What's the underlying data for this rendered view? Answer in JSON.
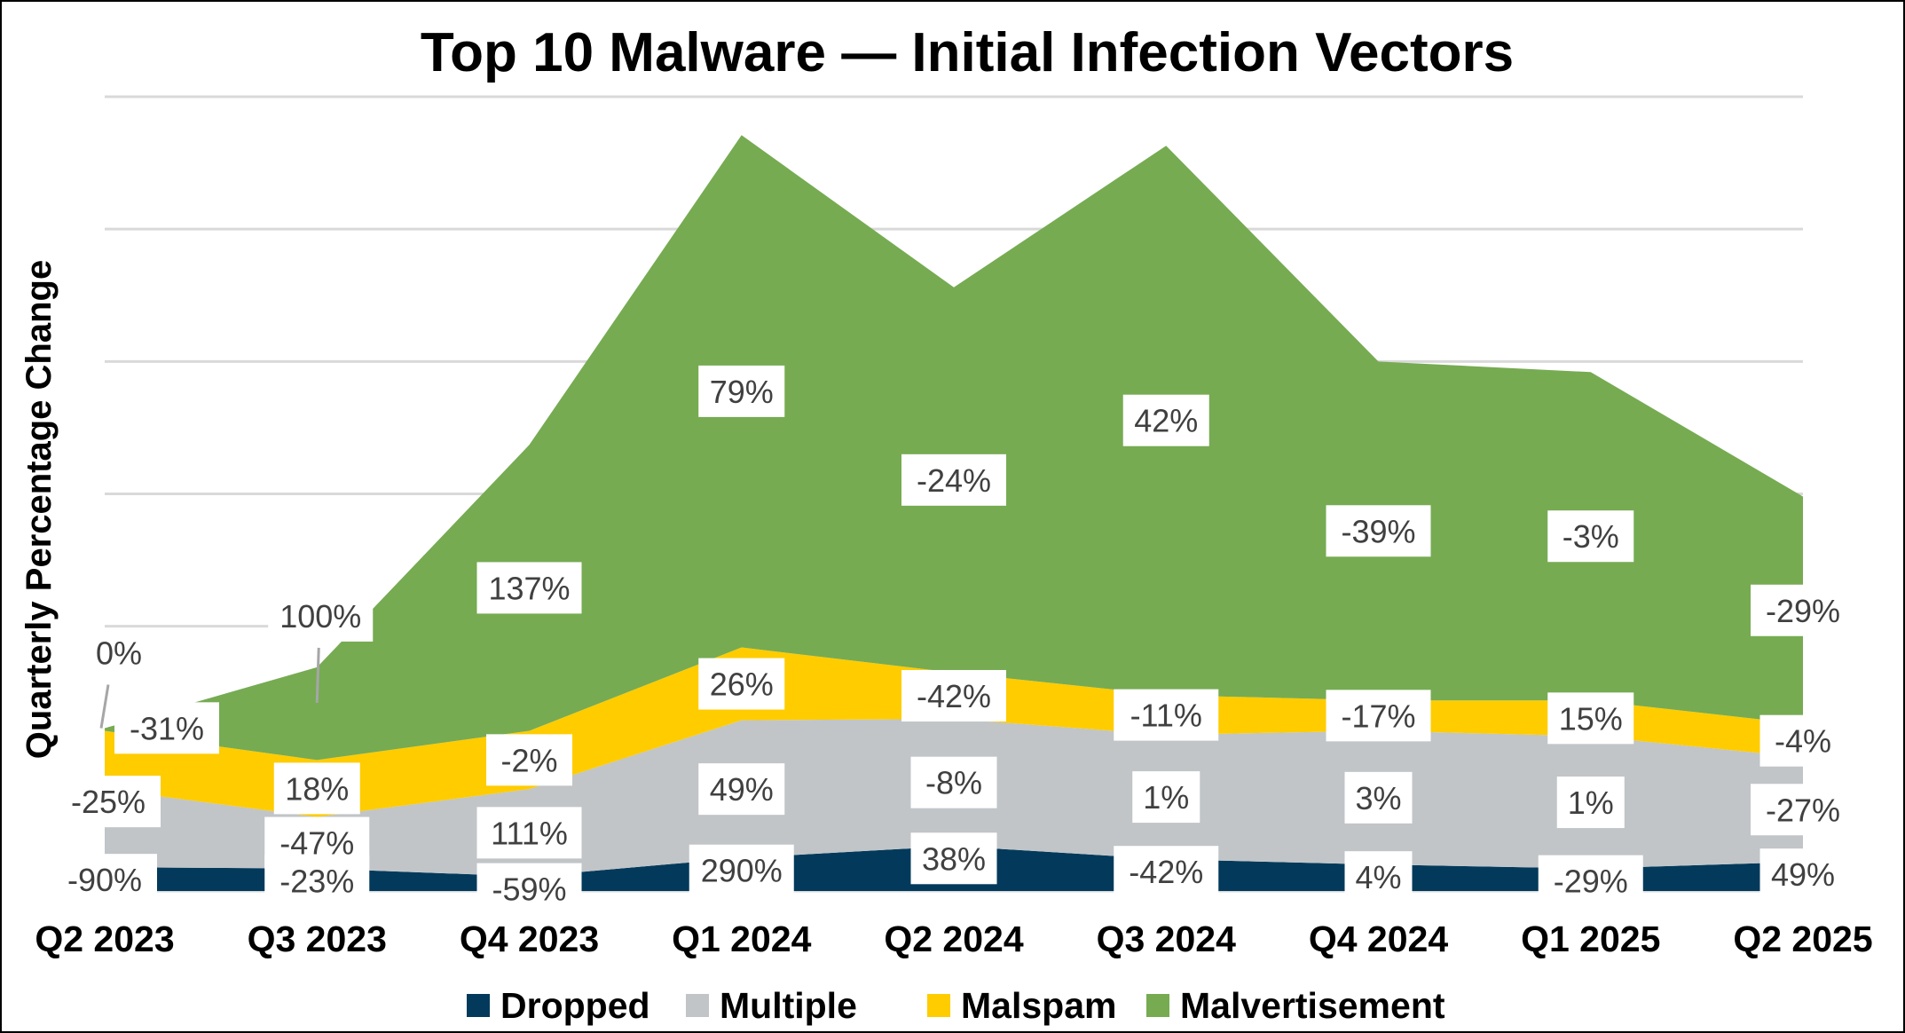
{
  "chart_data": {
    "type": "area",
    "stacked": true,
    "title": "Top 10 Malware — Initial Infection Vectors",
    "xlabel": "",
    "ylabel": "Quarterly Percentage Change",
    "ylim": [
      0,
      60
    ],
    "grid": true,
    "legend_position": "bottom",
    "categories": [
      "Q2 2023",
      "Q3 2023",
      "Q4 2023",
      "Q1 2024",
      "Q2 2024",
      "Q3 2024",
      "Q4 2024",
      "Q1 2025",
      "Q2 2025"
    ],
    "series": [
      {
        "name": "Dropped",
        "color": "#033A5B",
        "values": [
          1.8,
          1.7,
          1.1,
          2.5,
          3.4,
          2.4,
          2.0,
          1.7,
          2.2
        ],
        "labels": [
          "-90%",
          "-23%",
          "-59%",
          "290%",
          "38%",
          "-42%",
          "4%",
          "-29%",
          "49%"
        ]
      },
      {
        "name": "Multiple",
        "color": "#C1C5C8",
        "values": [
          5.9,
          3.9,
          6.6,
          10.4,
          9.6,
          9.4,
          10.1,
          10.0,
          7.9
        ],
        "labels": [
          "-25%",
          "-47%",
          "111%",
          "49%",
          "-8%",
          "1%",
          "3%",
          "1%",
          "-27%"
        ]
      },
      {
        "name": "Malspam",
        "color": "#FFCC00",
        "values": [
          4.4,
          4.3,
          4.4,
          5.5,
          3.5,
          3.0,
          2.3,
          2.7,
          2.5
        ],
        "labels": [
          "-31%",
          "18%",
          "-2%",
          "26%",
          "-42%",
          "-11%",
          "-17%",
          "15%",
          "-4%"
        ]
      },
      {
        "name": "Malvertisement",
        "color": "#76AB52",
        "values": [
          0.2,
          7.0,
          21.6,
          38.7,
          29.1,
          41.5,
          25.6,
          24.8,
          17.2
        ],
        "labels": [
          "0%",
          "100%",
          "137%",
          "79%",
          "-24%",
          "42%",
          "-39%",
          "-3%",
          "-29%"
        ]
      }
    ]
  }
}
